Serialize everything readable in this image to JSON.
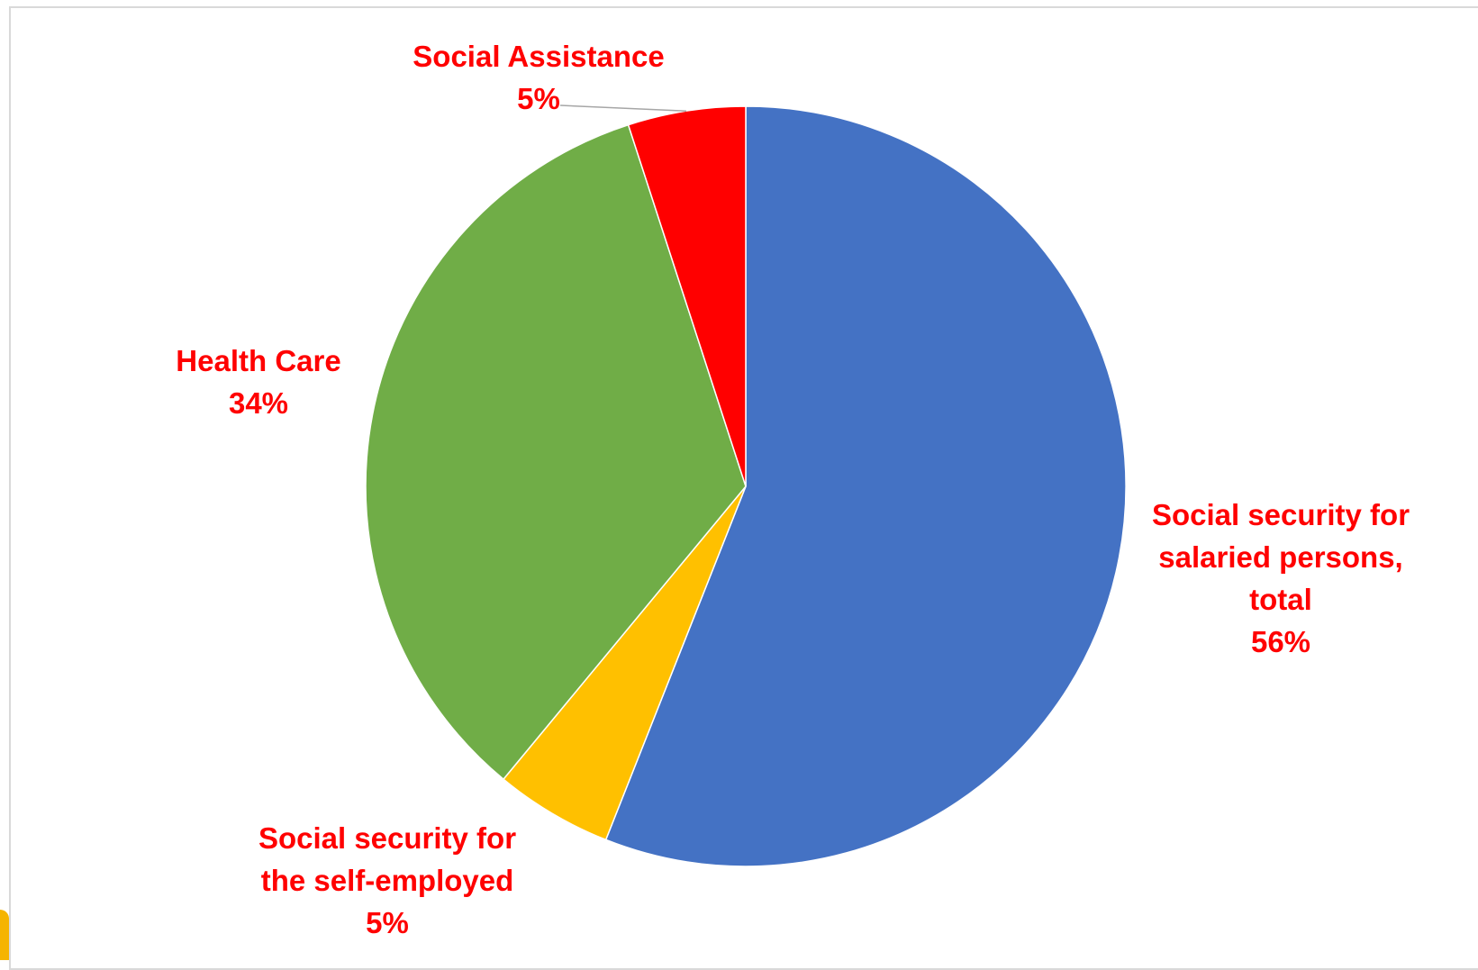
{
  "chart_data": {
    "type": "pie",
    "title": "",
    "label_color": "#ff0000",
    "start_angle_deg": 0,
    "direction": "clockwise",
    "slices": [
      {
        "label": "Social security for salaried persons, total",
        "label_lines": [
          "Social security for",
          "salaried persons,",
          "total"
        ],
        "value": 56,
        "value_label": "56%",
        "color": "#4472c4"
      },
      {
        "label": "Social security for the self-employed",
        "label_lines": [
          "Social security for",
          "the self-employed"
        ],
        "value": 5,
        "value_label": "5%",
        "color": "#ffc000"
      },
      {
        "label": "Health Care",
        "label_lines": [
          "Health Care"
        ],
        "value": 34,
        "value_label": "34%",
        "color": "#70ad47"
      },
      {
        "label": "Social Assistance",
        "label_lines": [
          "Social Assistance"
        ],
        "value": 5,
        "value_label": "5%",
        "color": "#ff0000"
      }
    ]
  }
}
